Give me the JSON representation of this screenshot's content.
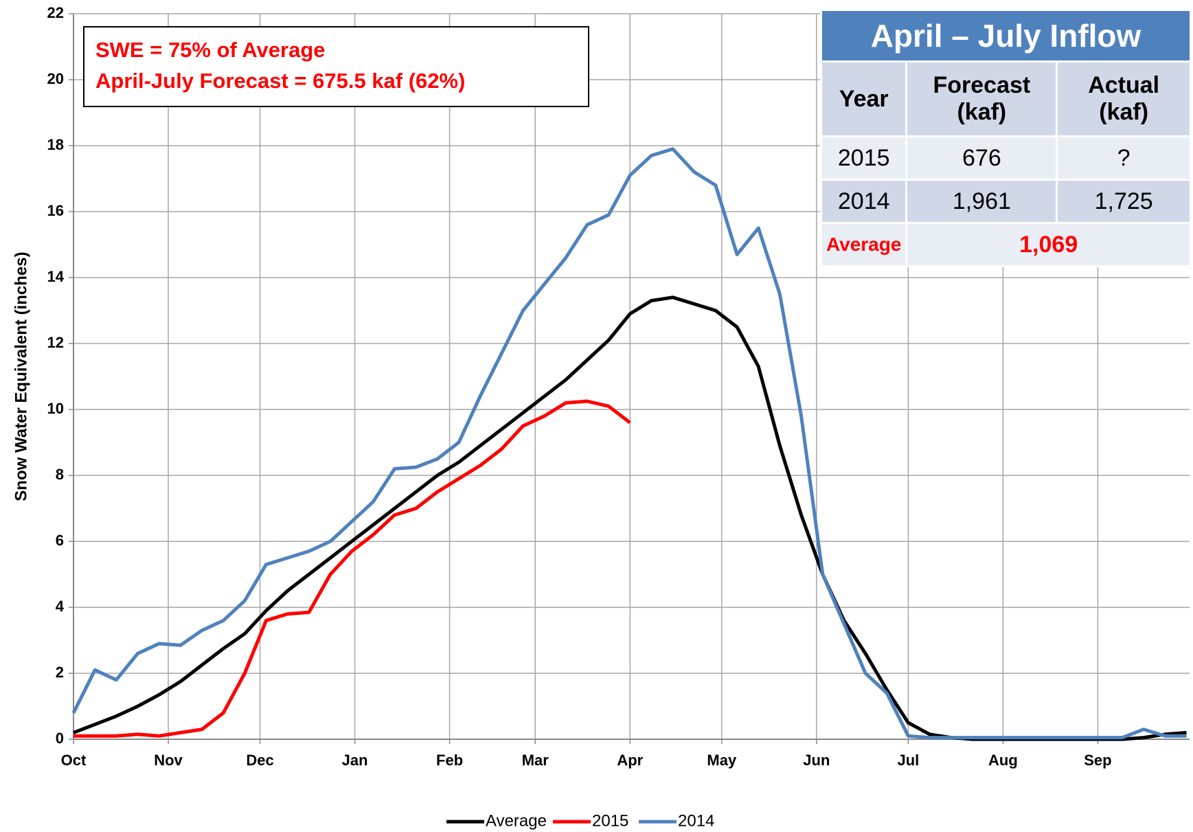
{
  "chart_data": {
    "type": "line",
    "annotations": [
      "SWE = 75% of Average",
      "April-July Forecast = 675.5 kaf (62%)"
    ],
    "ylabel": "Snow Water Equivalent (inches)",
    "x": [
      0,
      7,
      14,
      21,
      28,
      35,
      42,
      49,
      56,
      63,
      70,
      77,
      84,
      91,
      98,
      105,
      112,
      119,
      126,
      133,
      140,
      147,
      154,
      161,
      168,
      175,
      182,
      189,
      196,
      203,
      210,
      217,
      224,
      231,
      238,
      245,
      252,
      259,
      266,
      273,
      280,
      287,
      294,
      301,
      308,
      315,
      322,
      329,
      336,
      343,
      350,
      357,
      364
    ],
    "series": [
      {
        "name": "Average",
        "color": "#000000",
        "values": [
          0.2,
          0.45,
          0.7,
          1.0,
          1.35,
          1.75,
          2.25,
          2.75,
          3.2,
          3.9,
          4.5,
          5.0,
          5.5,
          6.0,
          6.5,
          7.0,
          7.5,
          8.0,
          8.4,
          8.9,
          9.4,
          9.9,
          10.4,
          10.9,
          11.5,
          12.1,
          12.9,
          13.3,
          13.4,
          13.2,
          13.0,
          12.5,
          11.3,
          8.9,
          6.8,
          5.0,
          3.6,
          2.6,
          1.5,
          0.5,
          0.15,
          0.05,
          0,
          0,
          0,
          0,
          0,
          0,
          0,
          0,
          0.05,
          0.15,
          0.2
        ]
      },
      {
        "name": "2015",
        "color": "#ff0000",
        "values": [
          0.1,
          0.1,
          0.1,
          0.15,
          0.1,
          0.2,
          0.3,
          0.8,
          2.0,
          3.6,
          3.8,
          3.85,
          5.0,
          5.7,
          6.2,
          6.8,
          7.0,
          7.5,
          7.9,
          8.3,
          8.8,
          9.5,
          9.8,
          10.2,
          10.25,
          10.1,
          9.6,
          null,
          null,
          null,
          null,
          null,
          null,
          null,
          null,
          null,
          null,
          null,
          null,
          null,
          null,
          null,
          null,
          null,
          null,
          null,
          null,
          null,
          null,
          null,
          null,
          null,
          null
        ]
      },
      {
        "name": "2014",
        "color": "#4f81bd",
        "values": [
          0.8,
          2.1,
          1.8,
          2.6,
          2.9,
          2.85,
          3.3,
          3.6,
          4.2,
          5.3,
          5.5,
          5.7,
          6.0,
          6.6,
          7.2,
          8.2,
          8.25,
          8.5,
          9.0,
          10.4,
          11.7,
          13.0,
          13.8,
          14.6,
          15.6,
          15.9,
          17.1,
          17.7,
          17.9,
          17.2,
          16.8,
          14.7,
          15.5,
          13.5,
          9.8,
          5.0,
          3.5,
          2.0,
          1.4,
          0.1,
          0.05,
          0.05,
          0.05,
          0.05,
          0.05,
          0.05,
          0.05,
          0.05,
          0.05,
          0.05,
          0.3,
          0.1,
          0.1
        ]
      }
    ],
    "xlim": [
      0,
      365
    ],
    "xticks": [
      {
        "value": 0,
        "label": "Oct"
      },
      {
        "value": 31,
        "label": "Nov"
      },
      {
        "value": 61,
        "label": "Dec"
      },
      {
        "value": 92,
        "label": "Jan"
      },
      {
        "value": 123,
        "label": "Feb"
      },
      {
        "value": 151,
        "label": "Mar"
      },
      {
        "value": 182,
        "label": "Apr"
      },
      {
        "value": 212,
        "label": "May"
      },
      {
        "value": 243,
        "label": "Jun"
      },
      {
        "value": 273,
        "label": "Jul"
      },
      {
        "value": 304,
        "label": "Aug"
      },
      {
        "value": 335,
        "label": "Sep"
      }
    ],
    "ylim": [
      0,
      22
    ],
    "yticks": [
      0,
      2,
      4,
      6,
      8,
      10,
      12,
      14,
      16,
      18,
      20,
      22
    ],
    "grid": true,
    "legend": "bottom"
  },
  "table": {
    "title": "April – July Inflow",
    "header": [
      "Year",
      "Forecast (kaf)",
      "Actual (kaf)"
    ],
    "rows": [
      [
        "2015",
        "676",
        "?"
      ],
      [
        "2014",
        "1,961",
        "1,725"
      ]
    ],
    "average": [
      "Average",
      "1,069"
    ]
  }
}
